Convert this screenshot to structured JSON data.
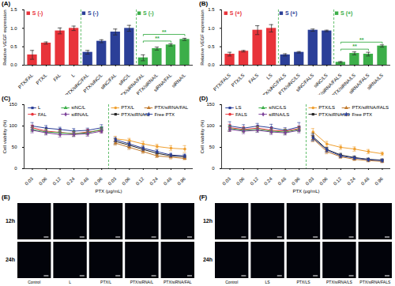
{
  "chart_data": [
    {
      "type": "bar",
      "title": "(A)",
      "y_label": "Relative VEGF expression",
      "categories": [
        "PTX/FAL",
        "PTX/L",
        "FAL",
        "L",
        "PTX/siNC/FAL",
        "PTX/siNC/L",
        "siNC/FAL",
        "siNC/L",
        "PTX/siRNA/FAL",
        "PTX/siRNA/L",
        "siRNA/FAL",
        "siRNA/L"
      ],
      "ylim": [
        0,
        1.5
      ],
      "yticks": [
        {
          "value": 0,
          "label": "0.0"
        },
        {
          "value": 0.5,
          "label": "0.5"
        },
        {
          "value": 1,
          "label": "1.0"
        },
        {
          "value": 1.5,
          "label": "1.5"
        }
      ],
      "series": [
        {
          "name": "S (-)",
          "color": "#e8333a",
          "values": [
            0.28,
            0.6,
            0.93,
            1.0,
            null,
            null,
            null,
            null,
            null,
            null,
            null,
            null
          ],
          "errors": [
            0.12,
            0.03,
            0.08,
            0.06,
            null,
            null,
            null,
            null,
            null,
            null,
            null,
            null
          ]
        },
        {
          "name": "S (-)",
          "color": "#2b3f98",
          "values": [
            null,
            null,
            null,
            null,
            0.35,
            0.65,
            0.9,
            1.0,
            null,
            null,
            null,
            null
          ],
          "errors": [
            null,
            null,
            null,
            null,
            0.05,
            0.04,
            0.08,
            0.08,
            null,
            null,
            null,
            null
          ]
        },
        {
          "name": "S (-)",
          "color": "#3cae49",
          "values": [
            null,
            null,
            null,
            null,
            null,
            null,
            null,
            null,
            0.2,
            0.45,
            0.55,
            0.7
          ],
          "errors": [
            null,
            null,
            null,
            null,
            null,
            null,
            null,
            null,
            0.08,
            0.04,
            0.03,
            0.03
          ]
        }
      ],
      "annotations": [
        {
          "from": "PTX/siRNA/FAL",
          "to": "siRNA/FAL",
          "label": "**"
        },
        {
          "from": "PTX/siRNA/FAL",
          "to": "siRNA/L",
          "label": "**"
        }
      ]
    },
    {
      "type": "bar",
      "title": "(B)",
      "y_label": "Relative VEGF expression",
      "categories": [
        "PTX/FALS",
        "PTX/LS",
        "FALS",
        "LS",
        "PTX/siNC/FALS",
        "PTX/siNC/LS",
        "siNC/FALS",
        "siNC/LS",
        "PTX/siRNA/FALS",
        "PTX/siRNA/LS",
        "siRNA/FALS",
        "siRNA/LS"
      ],
      "ylim": [
        0,
        1.5
      ],
      "yticks": [
        {
          "value": 0,
          "label": "0.0"
        },
        {
          "value": 0.5,
          "label": "0.5"
        },
        {
          "value": 1,
          "label": "1.0"
        },
        {
          "value": 1.5,
          "label": "1.5"
        }
      ],
      "series": [
        {
          "name": "S (+)",
          "color": "#e8333a",
          "values": [
            0.3,
            0.38,
            0.95,
            1.0,
            null,
            null,
            null,
            null,
            null,
            null,
            null,
            null
          ],
          "errors": [
            0.05,
            0.02,
            0.12,
            0.1,
            null,
            null,
            null,
            null,
            null,
            null,
            null,
            null
          ]
        },
        {
          "name": "S (+)",
          "color": "#2b3f98",
          "values": [
            null,
            null,
            null,
            null,
            0.28,
            0.35,
            0.95,
            0.93,
            null,
            null,
            null,
            null
          ],
          "errors": [
            null,
            null,
            null,
            null,
            0.03,
            0.02,
            0.03,
            0.02,
            null,
            null,
            null,
            null
          ]
        },
        {
          "name": "S (+)",
          "color": "#3cae49",
          "values": [
            null,
            null,
            null,
            null,
            null,
            null,
            null,
            null,
            0.08,
            0.32,
            0.3,
            0.52
          ],
          "errors": [
            null,
            null,
            null,
            null,
            null,
            null,
            null,
            null,
            0.02,
            0.04,
            0.05,
            0.03
          ]
        }
      ],
      "annotations": [
        {
          "from": "PTX/siRNA/FALS",
          "to": "siRNA/FALS",
          "label": "**"
        },
        {
          "from": "PTX/siRNA/FALS",
          "to": "siRNA/LS",
          "label": "**"
        }
      ]
    },
    {
      "type": "line",
      "title": "(C)",
      "y_label": "Cell viability (%)",
      "x_label": "PTX (μg/mL)",
      "categories": [
        "0.03",
        "0.06",
        "0.12",
        "0.24",
        "0.48",
        "0.96",
        "0.03",
        "0.06",
        "0.12",
        "0.24",
        "0.48",
        "0.96"
      ],
      "ylim": [
        0,
        150
      ],
      "yticks": [
        0,
        50,
        100,
        150
      ],
      "series": [
        {
          "name": "L",
          "color": "#2b3f98",
          "marker": "square",
          "values": [
            100,
            95,
            92,
            88,
            90,
            96,
            null,
            null,
            null,
            null,
            null,
            null
          ],
          "errors": [
            8,
            6,
            5,
            6,
            5,
            7,
            null,
            null,
            null,
            null,
            null,
            null
          ]
        },
        {
          "name": "FAL",
          "color": "#e8333a",
          "marker": "circle",
          "values": [
            96,
            88,
            85,
            82,
            86,
            90,
            null,
            null,
            null,
            null,
            null,
            null
          ],
          "errors": [
            6,
            5,
            6,
            5,
            6,
            5,
            null,
            null,
            null,
            null,
            null,
            null
          ]
        },
        {
          "name": "siNC/L",
          "color": "#3cae49",
          "marker": "triangle",
          "values": [
            92,
            86,
            84,
            82,
            84,
            92,
            null,
            null,
            null,
            null,
            null,
            null
          ],
          "errors": [
            5,
            6,
            5,
            6,
            5,
            6,
            null,
            null,
            null,
            null,
            null,
            null
          ]
        },
        {
          "name": "siRNA/L",
          "color": "#7b3f98",
          "marker": "diamond",
          "values": [
            90,
            84,
            80,
            80,
            82,
            88,
            null,
            null,
            null,
            null,
            null,
            null
          ],
          "errors": [
            6,
            5,
            6,
            5,
            6,
            5,
            null,
            null,
            null,
            null,
            null,
            null
          ]
        },
        {
          "name": "PTX/L",
          "color": "#f0a030",
          "marker": "circle",
          "values": [
            null,
            null,
            null,
            null,
            null,
            null,
            70,
            66,
            58,
            52,
            48,
            46
          ],
          "errors": [
            null,
            null,
            null,
            null,
            null,
            null,
            6,
            5,
            6,
            5,
            6,
            8
          ]
        },
        {
          "name": "PTX/siRNA/L",
          "color": "#222222",
          "marker": "square",
          "values": [
            null,
            null,
            null,
            null,
            null,
            null,
            64,
            55,
            45,
            36,
            30,
            28
          ],
          "errors": [
            null,
            null,
            null,
            null,
            null,
            null,
            6,
            5,
            5,
            4,
            4,
            4
          ]
        },
        {
          "name": "PTX/siRNA/FAL",
          "color": "#c0782a",
          "marker": "triangle",
          "values": [
            null,
            null,
            null,
            null,
            null,
            null,
            60,
            50,
            40,
            30,
            27,
            24
          ],
          "errors": [
            null,
            null,
            null,
            null,
            null,
            null,
            5,
            5,
            4,
            4,
            4,
            3
          ]
        },
        {
          "name": "Free PTX",
          "color": "#2b3f98",
          "marker": "diamond",
          "values": [
            null,
            null,
            null,
            null,
            null,
            null,
            68,
            58,
            48,
            40,
            32,
            30
          ],
          "errors": [
            null,
            null,
            null,
            null,
            null,
            null,
            5,
            5,
            5,
            4,
            4,
            4
          ]
        }
      ]
    },
    {
      "type": "line",
      "title": "(D)",
      "y_label": "Cell viability (%)",
      "x_label": "PTX (μg/mL)",
      "categories": [
        "0.03",
        "0.06",
        "0.12",
        "0.24",
        "0.48",
        "0.96",
        "0.03",
        "0.06",
        "0.12",
        "0.24",
        "0.48",
        "0.96"
      ],
      "ylim": [
        0,
        150
      ],
      "yticks": [
        0,
        50,
        100,
        150
      ],
      "series": [
        {
          "name": "LS",
          "color": "#2b3f98",
          "marker": "square",
          "values": [
            100,
            95,
            100,
            96,
            90,
            98,
            null,
            null,
            null,
            null,
            null,
            null
          ],
          "errors": [
            10,
            8,
            6,
            8,
            6,
            10,
            null,
            null,
            null,
            null,
            null,
            null
          ]
        },
        {
          "name": "FALS",
          "color": "#e8333a",
          "marker": "circle",
          "values": [
            96,
            92,
            95,
            90,
            88,
            94,
            null,
            null,
            null,
            null,
            null,
            null
          ],
          "errors": [
            8,
            6,
            5,
            6,
            5,
            6,
            null,
            null,
            null,
            null,
            null,
            null
          ]
        },
        {
          "name": "siNC/LS",
          "color": "#3cae49",
          "marker": "triangle",
          "values": [
            94,
            90,
            92,
            88,
            86,
            92,
            null,
            null,
            null,
            null,
            null,
            null
          ],
          "errors": [
            6,
            5,
            6,
            5,
            6,
            5,
            null,
            null,
            null,
            null,
            null,
            null
          ]
        },
        {
          "name": "siRNA/LS",
          "color": "#7b3f98",
          "marker": "diamond",
          "values": [
            92,
            88,
            90,
            86,
            84,
            90,
            null,
            null,
            null,
            null,
            null,
            null
          ],
          "errors": [
            5,
            6,
            5,
            6,
            5,
            6,
            null,
            null,
            null,
            null,
            null,
            null
          ]
        },
        {
          "name": "PTX/LS",
          "color": "#f0a030",
          "marker": "circle",
          "values": [
            null,
            null,
            null,
            null,
            null,
            null,
            86,
            58,
            50,
            46,
            40,
            35
          ],
          "errors": [
            null,
            null,
            null,
            null,
            null,
            null,
            8,
            6,
            5,
            5,
            5,
            4
          ]
        },
        {
          "name": "PTX/siRNA/LS",
          "color": "#222222",
          "marker": "square",
          "values": [
            null,
            null,
            null,
            null,
            null,
            null,
            75,
            45,
            32,
            26,
            22,
            20
          ],
          "errors": [
            null,
            null,
            null,
            null,
            null,
            null,
            8,
            5,
            4,
            4,
            3,
            3
          ]
        },
        {
          "name": "PTX/siRNA/FALS",
          "color": "#c0782a",
          "marker": "triangle",
          "values": [
            null,
            null,
            null,
            null,
            null,
            null,
            70,
            40,
            28,
            22,
            19,
            17
          ],
          "errors": [
            null,
            null,
            null,
            null,
            null,
            null,
            7,
            5,
            4,
            3,
            3,
            3
          ]
        },
        {
          "name": "Free PTX",
          "color": "#2b3f98",
          "marker": "diamond",
          "values": [
            null,
            null,
            null,
            null,
            null,
            null,
            72,
            44,
            30,
            25,
            21,
            19
          ],
          "errors": [
            null,
            null,
            null,
            null,
            null,
            null,
            7,
            5,
            4,
            3,
            3,
            3
          ]
        }
      ]
    }
  ],
  "image_panels": [
    {
      "title": "(E)",
      "rows": [
        "12h",
        "24h"
      ],
      "columns": [
        "Control",
        "L",
        "PTX/L",
        "PTX/siRNA/L",
        "PTX/siRNA/FAL"
      ]
    },
    {
      "title": "(F)",
      "rows": [
        "12h",
        "24h"
      ],
      "columns": [
        "Control",
        "LS",
        "PTX/LS",
        "PTX/siRNA/LS",
        "PTX/siRNA/FALS"
      ]
    }
  ]
}
